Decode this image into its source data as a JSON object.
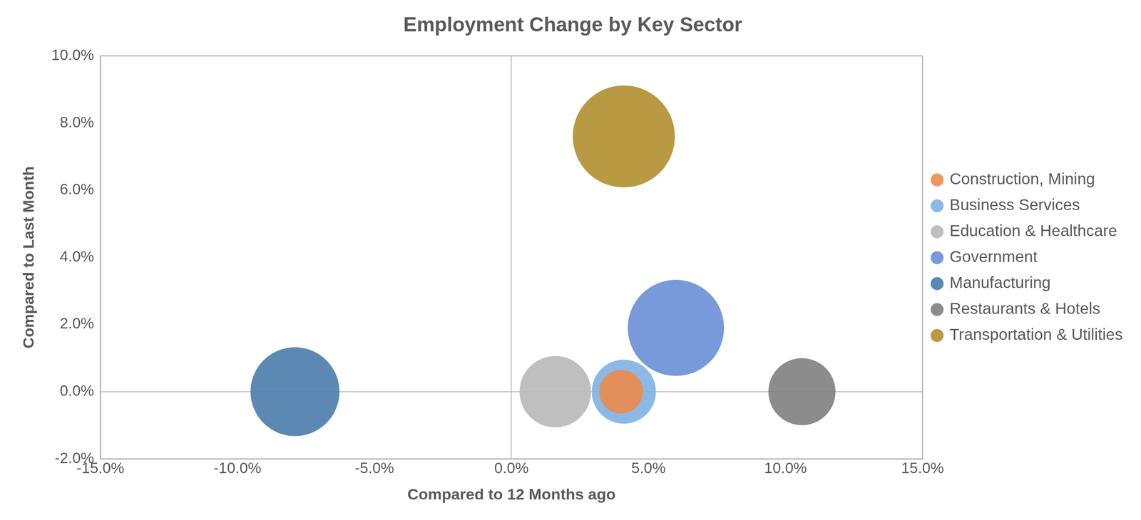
{
  "chart_data": {
    "type": "bubble",
    "title": "Employment Change by Key Sector",
    "x_label": "Compared to 12 Months ago",
    "y_label": "Compared to Last Month",
    "xlim": [
      -15,
      15
    ],
    "xticks": [
      {
        "value": -15,
        "label": "-15.0%"
      },
      {
        "value": -10,
        "label": "-10.0%"
      },
      {
        "value": -5,
        "label": "-5.0%"
      },
      {
        "value": 0,
        "label": "0.0%"
      },
      {
        "value": 5,
        "label": "5.0%"
      },
      {
        "value": 10,
        "label": "10.0%"
      },
      {
        "value": 15,
        "label": "15.0%"
      }
    ],
    "ylim": [
      -2,
      10
    ],
    "yticks": [
      {
        "value": -2,
        "label": "-2.0%"
      },
      {
        "value": 0,
        "label": "0.0%"
      },
      {
        "value": 2,
        "label": "2.0%"
      },
      {
        "value": 4,
        "label": "4.0%"
      },
      {
        "value": 6,
        "label": "6.0%"
      },
      {
        "value": 8,
        "label": "8.0%"
      },
      {
        "value": 10,
        "label": "10.0%"
      }
    ],
    "grid": false,
    "legend": "right",
    "series": [
      {
        "name": "Business Services",
        "color": "#7eb1e3",
        "x": [
          4.1
        ],
        "values": [
          0.0
        ],
        "size": [
          1936
        ]
      },
      {
        "name": "Construction, Mining",
        "color": "#ed8b4e",
        "x": [
          4.0
        ],
        "values": [
          0.0
        ],
        "size": [
          900
        ]
      },
      {
        "name": "Education & Healthcare",
        "color": "#b8b8b8",
        "x": [
          1.6
        ],
        "values": [
          0.0
        ],
        "size": [
          2401
        ]
      },
      {
        "name": "Government",
        "color": "#6a8fd6",
        "x": [
          6.0
        ],
        "values": [
          1.9
        ],
        "size": [
          4356
        ]
      },
      {
        "name": "Manufacturing",
        "color": "#4a7cab",
        "x": [
          -7.9
        ],
        "values": [
          0.0
        ],
        "size": [
          3721
        ]
      },
      {
        "name": "Restaurants & Hotels",
        "color": "#7f7f7f",
        "x": [
          10.6
        ],
        "values": [
          0.0
        ],
        "size": [
          2116
        ]
      },
      {
        "name": "Transportation & Utilities",
        "color": "#b08f2f",
        "x": [
          4.1
        ],
        "values": [
          7.6
        ],
        "size": [
          4900
        ]
      }
    ]
  }
}
